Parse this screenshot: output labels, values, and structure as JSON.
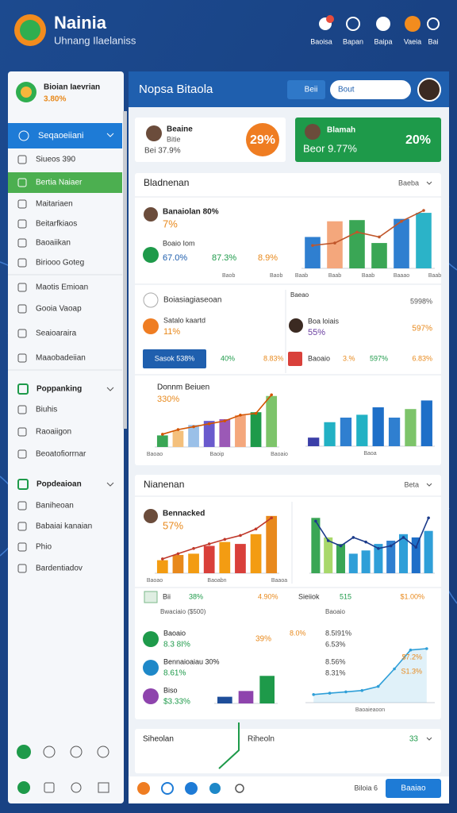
{
  "header": {
    "title": "Nainia",
    "subtitle": "Uhnang Ilaelaniss",
    "nav": [
      "Baoisa",
      "Bapan",
      "Baipa",
      "Vaeia",
      "Bai"
    ]
  },
  "sidebar": {
    "profile_name": "Bioian Iaevrian",
    "profile_value": "3.80%",
    "active": "Seqaoeiiani",
    "items": [
      "Siueos 390",
      "Bertia Naiaer",
      "Maitariaen",
      "Beitarfkiaos",
      "Baoaiikan",
      "Biriooo Goteg",
      "Maotis Emioan",
      "Gooia Vaoap",
      "Seaioaraira",
      "Maaobadeiian"
    ],
    "sections": [
      {
        "title": "Poppanking",
        "items": [
          "Biuhis",
          "Raoaiigon",
          "Beoatofiorrnar"
        ]
      },
      {
        "title": "Popdeaioan",
        "items": [
          "Baniheoan",
          "Babaiai kanaian",
          "Phio",
          "Bardentiadov"
        ]
      }
    ]
  },
  "main": {
    "title": "Nopsa Bitaola",
    "button": "Beii",
    "search": "Bout",
    "summary": [
      {
        "name": "Beaine",
        "sub": "Bitie",
        "stat": "Bei 37.9%",
        "badge": "29%"
      },
      {
        "name": "Blamah",
        "stat": "Beor 9.77%",
        "badge": "20%"
      }
    ],
    "panel1": {
      "title": "Bladnenan",
      "menu": "Baeba",
      "top": {
        "name": "Banaiolan 80%",
        "value": "7%",
        "sub": "Boaio Iom",
        "stats": [
          "67.0%",
          "87.3%",
          "8.9%"
        ],
        "foot": [
          "Baob",
          "Baob"
        ],
        "chart": {
          "ylim": [
            0,
            100
          ],
          "bars": {
            "values": [
              52,
              78,
              80,
              42,
              82,
              92
            ],
            "colors": [
              "#2f7fd0",
              "#f4a77c",
              "#3aa655",
              "#3aa655",
              "#2f7fd0",
              "#2bb3c8"
            ]
          },
          "line": {
            "values": [
              38,
              42,
              60,
              52,
              78,
              96
            ],
            "color": "#c0562a"
          },
          "labels": [
            "Baab",
            "Baab",
            "Baab",
            "Baaao",
            "Baab"
          ]
        }
      },
      "rows": {
        "a": "Boiasiagiaseoan",
        "a_tag": "Baeao",
        "a_value": "5998%",
        "b": "Satalo kaartd",
        "b_value": "11%",
        "c": "Boa loiais",
        "c_value": "55%",
        "c_right": "597%",
        "button": "Sasok 538%",
        "d1": "40%",
        "d2": "8.83%",
        "e": "Baoaio",
        "e1": "3.%",
        "e2": "597%",
        "e3": "6.83%"
      },
      "left": {
        "name": "Donnm Beiuen",
        "value": "330%",
        "chart": {
          "ylim": [
            0,
            100
          ],
          "bars": {
            "values": [
              20,
              28,
              38,
              45,
              48,
              55,
              60,
              88
            ],
            "colors": [
              "#3aa655",
              "#f4c07c",
              "#9ac0e8",
              "#6a5acd",
              "#9b59b6",
              "#f4a77c",
              "#1e9a4a",
              "#7dc46a"
            ]
          },
          "line": {
            "values": [
              22,
              30,
              35,
              40,
              45,
              55,
              58,
              90
            ],
            "color": "#d35400"
          },
          "labels": [
            "Baoao",
            "Baoip",
            "Baoaio"
          ]
        }
      },
      "right": {
        "chart": {
          "ylim": [
            0,
            100
          ],
          "bars": {
            "values": [
              15,
              42,
              50,
              55,
              68,
              50,
              65,
              80
            ],
            "colors": [
              "#3b3fa8",
              "#22b1c4",
              "#2f7fd0",
              "#22b1c4",
              "#1e6fc8",
              "#2f7fd0",
              "#7dc46a",
              "#1e6fc8"
            ]
          },
          "labels": [
            "Baoa"
          ]
        }
      }
    },
    "panel2": {
      "title": "Nianenan",
      "menu": "Beta",
      "left": {
        "name": "Bennacked",
        "value": "57%",
        "chart": {
          "ylim": [
            0,
            100
          ],
          "bars": {
            "values": [
              20,
              28,
              30,
              42,
              48,
              45,
              60,
              88
            ],
            "colors": [
              "#f39c12",
              "#e8891c",
              "#f39c12",
              "#d9403a",
              "#f39c12",
              "#d9403a",
              "#f39c12",
              "#e8891c"
            ]
          },
          "line": {
            "values": [
              22,
              30,
              38,
              45,
              52,
              58,
              68,
              85
            ],
            "color": "#c0392b"
          },
          "labels": [
            "Baoao",
            "Baoabn",
            "Baaoa"
          ]
        }
      },
      "right": {
        "chart": {
          "ylim": [
            0,
            100
          ],
          "bars": {
            "values": [
              85,
              55,
              45,
              30,
              35,
              45,
              50,
              60,
              55,
              65
            ],
            "colors": [
              "#3aa655",
              "#a8d86a",
              "#3aa655",
              "#2f9fd8",
              "#2f9fd8",
              "#2f9fd8",
              "#2f7fd0",
              "#2f9fd8",
              "#1e6fc8",
              "#2f9fd8"
            ]
          },
          "line": {
            "values": [
              80,
              50,
              42,
              55,
              48,
              38,
              42,
              55,
              40,
              85
            ],
            "color": "#1b3a8a"
          }
        }
      },
      "summary_row": {
        "name": "Bii",
        "v1": "38%",
        "v2": "4.90%",
        "note": "Bwaciaio ($500)",
        "right": "Sieiiok",
        "r1": "515",
        "r2": "$1.00%",
        "r_note": "Baoaio"
      },
      "list": [
        {
          "name": "Baoaio",
          "value": "8.3 8I%",
          "mid": "39%",
          "mid2": "8.0%",
          "r1": "8.5I91%",
          "r2": "6.53%"
        },
        {
          "name": "Bennaioaiau 30%",
          "value": "8.61%",
          "r1": "8.56%",
          "r2": "8.31%"
        },
        {
          "name": "Biso",
          "value": "$3.33%"
        }
      ],
      "small_chart": {
        "ylim": [
          0,
          100
        ],
        "bars": {
          "values": [
            15,
            28,
            62
          ],
          "colors": [
            "#1e4e9a",
            "#8e44ad",
            "#1e9a4a"
          ]
        }
      },
      "area_chart": {
        "ylim": [
          0,
          100
        ],
        "area": true,
        "line": {
          "values": [
            12,
            14,
            16,
            18,
            24,
            50,
            78,
            80
          ],
          "color": "#2f9fd8"
        },
        "labels": [
          "Baoaieaoon"
        ]
      },
      "area_labels": [
        "S1.3%",
        "$7.2%"
      ]
    },
    "panel3": {
      "title": "Siheolan",
      "mid": "Riheoln",
      "value": "33"
    },
    "footer": {
      "text": "Biloia 6",
      "button": "Baaiao"
    }
  }
}
